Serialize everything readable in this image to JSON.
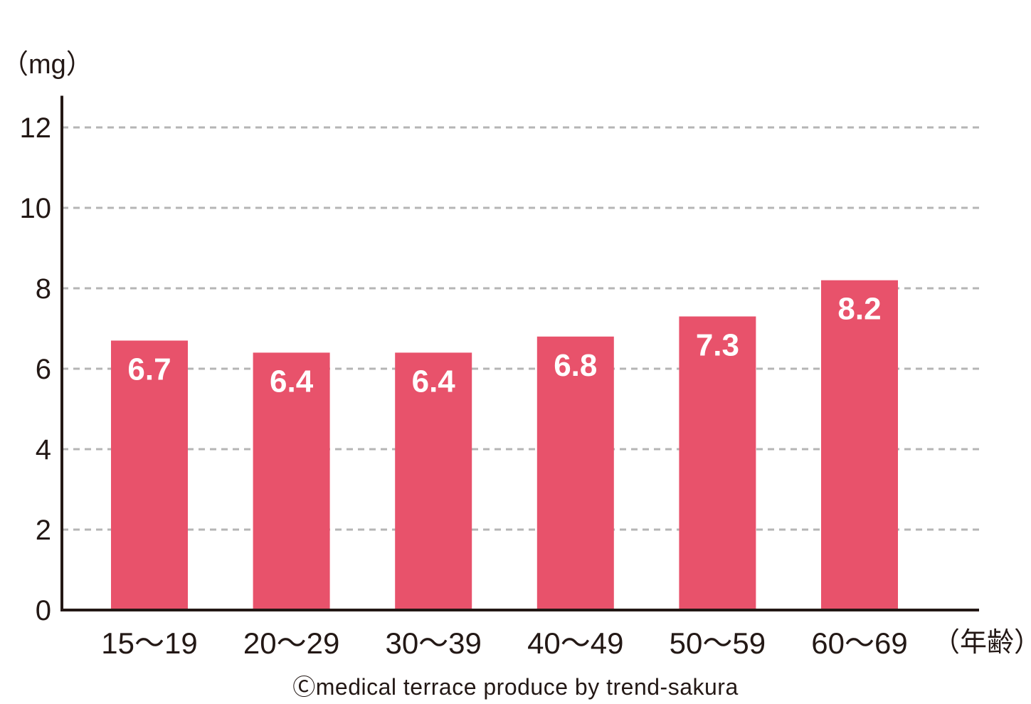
{
  "chart_data": {
    "type": "bar",
    "categories": [
      "15〜19",
      "20〜29",
      "30〜39",
      "40〜49",
      "50〜59",
      "60〜69"
    ],
    "values": [
      6.7,
      6.4,
      6.4,
      6.8,
      7.3,
      8.2
    ],
    "data_labels": [
      "6.7",
      "6.4",
      "6.4",
      "6.8",
      "7.3",
      "8.2"
    ],
    "ylabel": "（mg）",
    "xlabel": "（年齢）",
    "ylim": [
      0,
      12.7
    ],
    "yticks": [
      0,
      2,
      4,
      6,
      8,
      10,
      12
    ],
    "grid": true,
    "legend": "none",
    "colors": {
      "bar": "#e8526b",
      "axis": "#231815",
      "grid": "#b5b5b5",
      "label": "#ffffff"
    }
  },
  "credit": "Ⓒmedical terrace produce by trend-sakura"
}
